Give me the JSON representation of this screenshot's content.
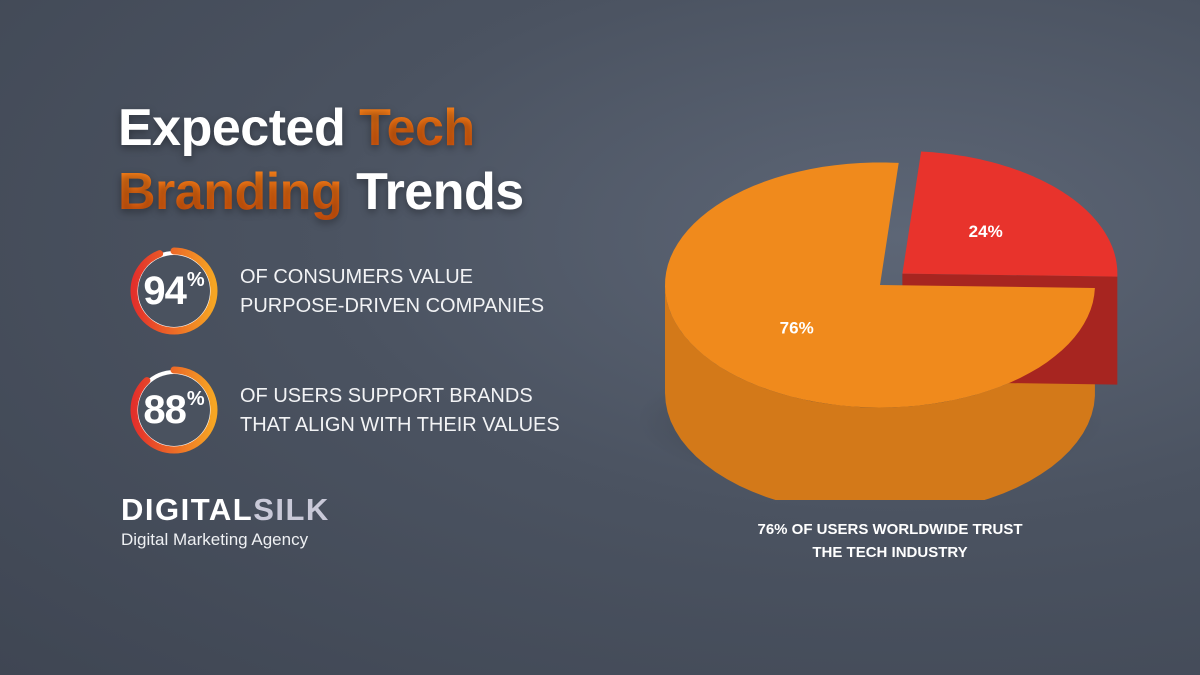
{
  "title": {
    "word1": "Expected",
    "word2": "Tech",
    "word3": "Branding",
    "word4": "Trends"
  },
  "stats": [
    {
      "value": "94",
      "unit": "%",
      "percent": 94,
      "line1": "OF CONSUMERS VALUE",
      "line2": "PURPOSE-DRIVEN COMPANIES"
    },
    {
      "value": "88",
      "unit": "%",
      "percent": 88,
      "line1": "OF USERS SUPPORT BRANDS",
      "line2": "THAT ALIGN WITH THEIR VALUES"
    }
  ],
  "brand": {
    "name_part1": "DIGITAL",
    "name_part2": "SILK",
    "tagline": "Digital Marketing Agency"
  },
  "chart_data": {
    "type": "pie",
    "slices": [
      {
        "label": "76%",
        "value": 76,
        "color": "#f08a1c"
      },
      {
        "label": "24%",
        "value": 24,
        "color": "#e8332c"
      }
    ],
    "caption_line1": "76% OF USERS WORLDWIDE TRUST",
    "caption_line2": "THE TECH INDUSTRY"
  },
  "colors": {
    "accent_orange": "#f27a14",
    "ring_red": "#e3302b",
    "ring_yellow": "#f6a623"
  }
}
